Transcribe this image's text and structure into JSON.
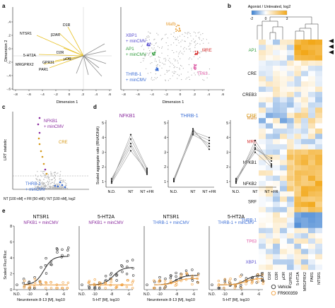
{
  "panels": {
    "a": "a",
    "b": "b",
    "c": "c",
    "d": "d",
    "e": "e"
  },
  "panel_a": {
    "ylabel": "Dimension 2",
    "xlabel": "Dimension 1",
    "xticks": [
      "-.8",
      "-.6",
      "-.4",
      "-.2",
      "0",
      ".2",
      ".4",
      ".6"
    ],
    "yticks": [
      ".4",
      ".2",
      "0",
      "-.2",
      "-.4",
      "-.6"
    ],
    "receptor_labels": [
      "NTSR1",
      "β2AR",
      "D1R",
      "5-HT2A",
      "D2R",
      "MRGPRX2",
      "GPR31",
      "PAR1",
      "μOR"
    ],
    "cluster_labels": [
      "Mafb",
      "XBP1",
      "+ minCMV",
      "AP1",
      "+ minCMV",
      "MRE",
      "THRB-1",
      "+ minCMV",
      "TP63"
    ],
    "colors": {
      "arrow_agonist": "#e8c22a",
      "arrow_other": "#8c8c8c",
      "Mafb": "#e69a2e",
      "XBP1": "#5a4fcf",
      "AP1": "#2e9b3a",
      "MRE": "#d42b2b",
      "THRB1": "#3d6fd6",
      "TP63": "#e05aa6"
    }
  },
  "panel_b": {
    "colorbar_title": "Agonist / Untreated, log2",
    "colorbar_ticks": [
      "-2",
      "0",
      "3"
    ],
    "row_labels": [
      "AP1",
      "CRE",
      "CREB3",
      "Mafb",
      "MRE",
      "NFKB1",
      "NFKB2",
      "SRF",
      "THRB-1",
      "TP63",
      "XBP1"
    ],
    "row_colors": [
      "#2e9b3a",
      "#111111",
      "#111111",
      "#d68a2a",
      "#d42b2b",
      "#111111",
      "#111111",
      "#111111",
      "#3d6fd6",
      "#e05aa6",
      "#5a4fcf"
    ],
    "col_labels": [
      "β2AR",
      "D1R",
      "D2R",
      "μOR",
      "GPR31",
      "5-HT2A",
      "MRGPRX2",
      "PAR1",
      "NTSR1"
    ],
    "colors": {
      "neg": "#4d8fd6",
      "mid": "#ffffff",
      "pos": "#f2a81a"
    }
  },
  "panel_c": {
    "ylabel": "LRT statistic",
    "xlabel": "NT [100 nM] + FR [50 nM] / NT [100 nM], log2",
    "labels": [
      "NFKB1",
      "+ minCMV",
      "CRE",
      "THRB-1",
      "+ minCMV"
    ],
    "colors": {
      "NFKB1": "#8a2a9e",
      "CRE": "#d69a1a",
      "THRB1": "#3d6fd6",
      "other": "#b8b8b8"
    }
  },
  "panel_d": {
    "ylabel": "Scaled aggregate ratio (RNA/DNA)",
    "titles": [
      "NFKB1",
      "THRB-1",
      "CRE"
    ],
    "title_colors": [
      "#8a2a9e",
      "#3d6fd6",
      "#d69a1a"
    ],
    "categories": [
      "N.D.",
      "NT",
      "NT +FR"
    ],
    "yticks": [
      "5",
      "4",
      "3",
      "2",
      "1"
    ]
  },
  "panel_e": {
    "ylabel": "Scaled Fluc/Rluc",
    "plots": [
      {
        "receptor": "NTSR1",
        "reporter": "NFKB1 + minCMV",
        "xlabel": "Neurotensin 8-13 [M], log10",
        "reporter_color": "#8a2a9e"
      },
      {
        "receptor": "5-HT2A",
        "reporter": "NFKB1 + minCMV",
        "xlabel": "5-HT [M], log10",
        "reporter_color": "#8a2a9e"
      },
      {
        "receptor": "NTSR1",
        "reporter": "THRB-1 + minCMV",
        "xlabel": "Neurotensin 8-13 [M], log10",
        "reporter_color": "#3d6fd6"
      },
      {
        "receptor": "5-HT2A",
        "reporter": "THRB-1 + minCMV",
        "xlabel": "5-HT [M], log10",
        "reporter_color": "#3d6fd6"
      }
    ],
    "xticks": [
      "N.D.",
      "-10",
      "-8",
      "-6"
    ],
    "yticks": [
      "8",
      "6",
      "4",
      "2",
      "0"
    ],
    "legend": [
      "Vehicle",
      "FR900359"
    ],
    "colors": {
      "vehicle": "#333333",
      "fr": "#f0a040"
    }
  }
}
